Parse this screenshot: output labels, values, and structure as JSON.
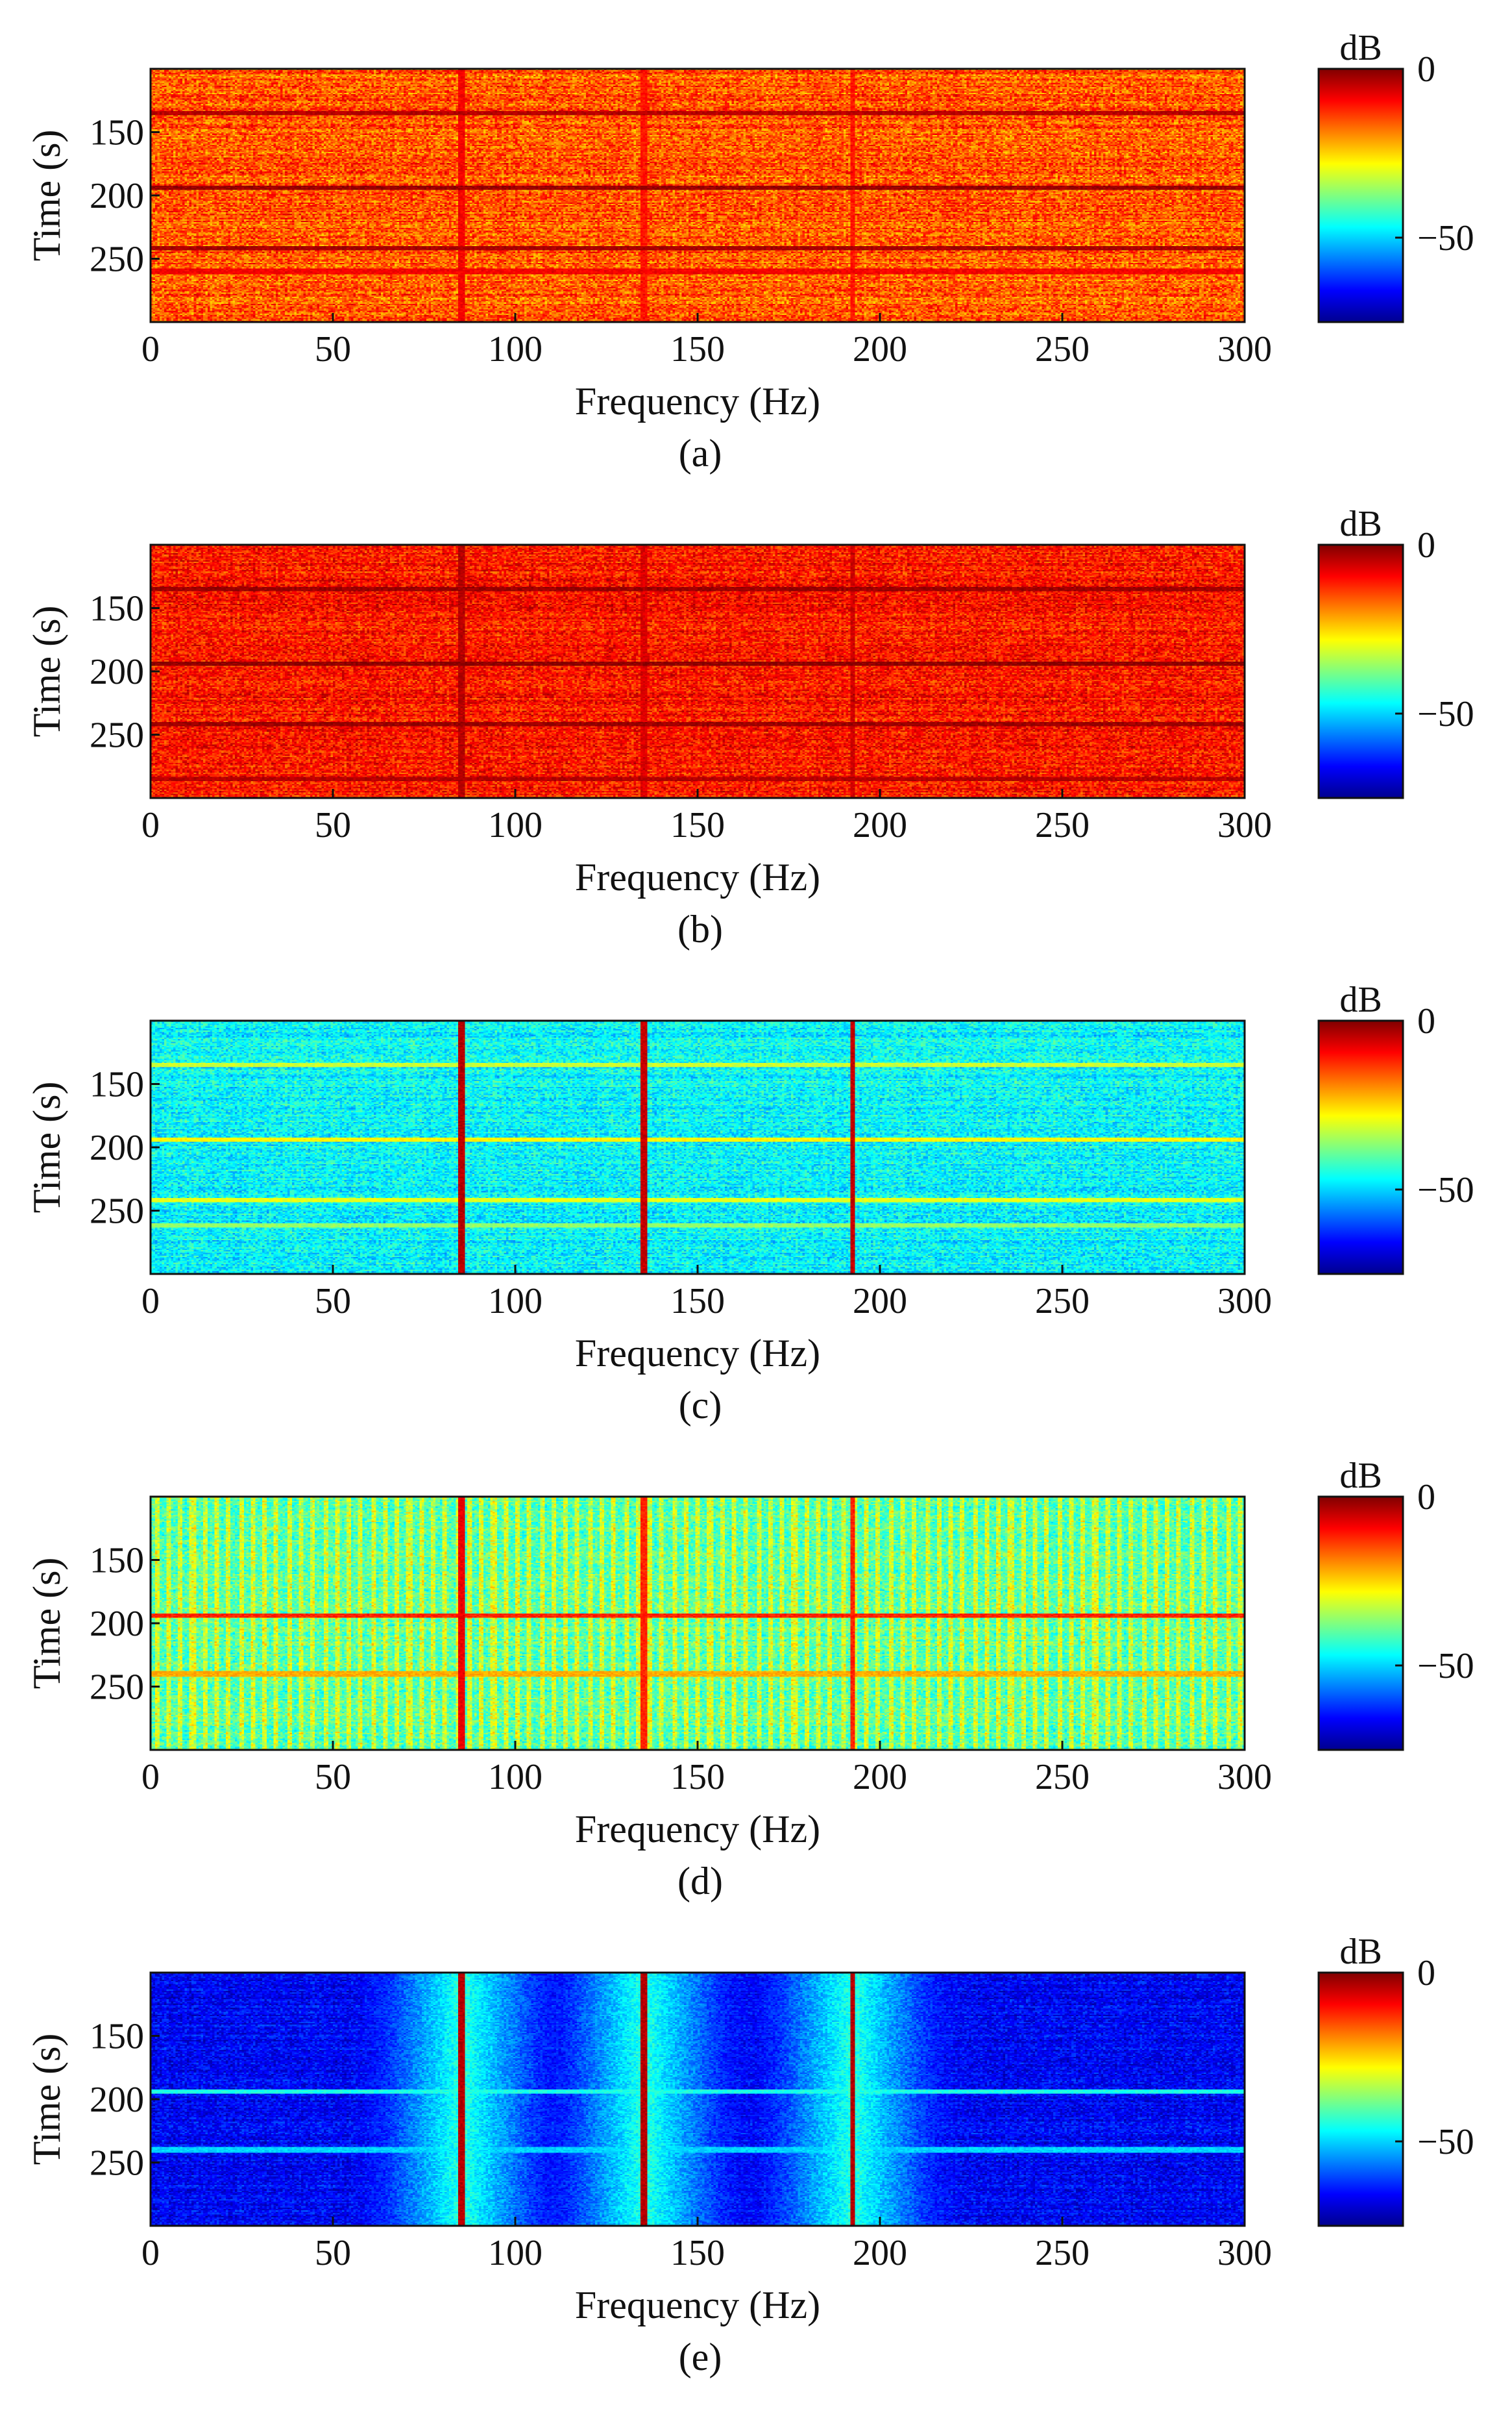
{
  "figure": {
    "colormap": "jet",
    "colors": {
      "axis": "#111111",
      "background": "#ffffff"
    }
  },
  "chart_data": [
    {
      "type": "heatmap",
      "panel_label": "(a)",
      "xlabel": "Frequency (Hz)",
      "ylabel": "Time (s)",
      "xlim": [
        0,
        300
      ],
      "ylim": [
        100,
        300
      ],
      "y_reversed": true,
      "x_ticks": [
        0,
        50,
        100,
        150,
        200,
        250,
        300
      ],
      "y_ticks": [
        150,
        200,
        250
      ],
      "colorbar": {
        "title": "dB",
        "range": [
          -75,
          0
        ],
        "ticks": [
          0,
          -50
        ]
      },
      "description": "broadband high energy",
      "base_level_db": -16,
      "noise_db": 7,
      "horizontal_bands": [
        {
          "t": 135,
          "db": -4
        },
        {
          "t": 194,
          "db": -2
        },
        {
          "t": 242,
          "db": -3
        },
        {
          "t": 260,
          "db": -9
        }
      ],
      "vertical_lines": [
        {
          "f": 85.5,
          "db": -9
        },
        {
          "f": 135.5,
          "db": -11
        },
        {
          "f": 192.5,
          "db": -11
        }
      ]
    },
    {
      "type": "heatmap",
      "panel_label": "(b)",
      "xlabel": "Frequency (Hz)",
      "ylabel": "Time (s)",
      "xlim": [
        0,
        300
      ],
      "ylim": [
        100,
        300
      ],
      "y_reversed": true,
      "x_ticks": [
        0,
        50,
        100,
        150,
        200,
        250,
        300
      ],
      "y_ticks": [
        150,
        200,
        250
      ],
      "colorbar": {
        "title": "dB",
        "range": [
          -75,
          0
        ],
        "ticks": [
          0,
          -50
        ]
      },
      "description": "broadband high energy, stronger",
      "base_level_db": -11,
      "noise_db": 6,
      "horizontal_bands": [
        {
          "t": 135,
          "db": -2
        },
        {
          "t": 194,
          "db": -1
        },
        {
          "t": 242,
          "db": -2
        },
        {
          "t": 285,
          "db": -4
        }
      ],
      "vertical_lines": [
        {
          "f": 85.5,
          "db": -4
        },
        {
          "f": 135.5,
          "db": -7
        },
        {
          "f": 192.5,
          "db": -6
        }
      ]
    },
    {
      "type": "heatmap",
      "panel_label": "(c)",
      "xlabel": "Frequency (Hz)",
      "ylabel": "Time (s)",
      "xlim": [
        0,
        300
      ],
      "ylim": [
        100,
        300
      ],
      "y_reversed": true,
      "x_ticks": [
        0,
        50,
        100,
        150,
        200,
        250,
        300
      ],
      "y_ticks": [
        150,
        200,
        250
      ],
      "colorbar": {
        "title": "dB",
        "range": [
          -75,
          0
        ],
        "ticks": [
          0,
          -50
        ]
      },
      "description": "low background with strong lines near 85.5, 135.5, 192.5 Hz",
      "base_level_db": -47,
      "noise_db": 6,
      "horizontal_bands": [
        {
          "t": 135,
          "db": -32
        },
        {
          "t": 194,
          "db": -28
        },
        {
          "t": 242,
          "db": -30
        },
        {
          "t": 262,
          "db": -36
        }
      ],
      "vertical_lines": [
        {
          "f": 85.5,
          "db": -4
        },
        {
          "f": 135.5,
          "db": -5
        },
        {
          "f": 192.5,
          "db": -5
        }
      ]
    },
    {
      "type": "heatmap",
      "panel_label": "(d)",
      "xlabel": "Frequency (Hz)",
      "ylabel": "Time (s)",
      "xlim": [
        0,
        300
      ],
      "ylim": [
        100,
        300
      ],
      "y_reversed": true,
      "x_ticks": [
        0,
        50,
        100,
        150,
        200,
        250,
        300
      ],
      "y_ticks": [
        150,
        200,
        250
      ],
      "colorbar": {
        "title": "dB",
        "range": [
          -75,
          0
        ],
        "ticks": [
          0,
          -50
        ]
      },
      "description": "periodic comb texture with lines near 85.5, 135.5, 192.5 Hz",
      "base_level_db": -37,
      "noise_db": 6,
      "comb_spacing_hz": 3.3,
      "horizontal_bands": [
        {
          "t": 194,
          "db": -12
        },
        {
          "t": 240,
          "db": -22
        }
      ],
      "vertical_lines": [
        {
          "f": 85.5,
          "db": -8
        },
        {
          "f": 135.5,
          "db": -12
        },
        {
          "f": 192.5,
          "db": -12
        }
      ]
    },
    {
      "type": "heatmap",
      "panel_label": "(e)",
      "xlabel": "Frequency (Hz)",
      "ylabel": "Time (s)",
      "xlim": [
        0,
        300
      ],
      "ylim": [
        100,
        300
      ],
      "y_reversed": true,
      "x_ticks": [
        0,
        50,
        100,
        150,
        200,
        250,
        300
      ],
      "y_ticks": [
        150,
        200,
        250
      ],
      "colorbar": {
        "title": "dB",
        "range": [
          -75,
          0
        ],
        "ticks": [
          0,
          -50
        ]
      },
      "description": "very low background, dominant lines near 85.5, 135.5, 192.5 Hz",
      "base_level_db": -66,
      "noise_db": 5,
      "horizontal_bands": [
        {
          "t": 194,
          "db": -45
        },
        {
          "t": 240,
          "db": -50
        }
      ],
      "vertical_lines": [
        {
          "f": 85.5,
          "db": -4
        },
        {
          "f": 135.5,
          "db": -4
        },
        {
          "f": 192.5,
          "db": -4
        }
      ]
    }
  ]
}
